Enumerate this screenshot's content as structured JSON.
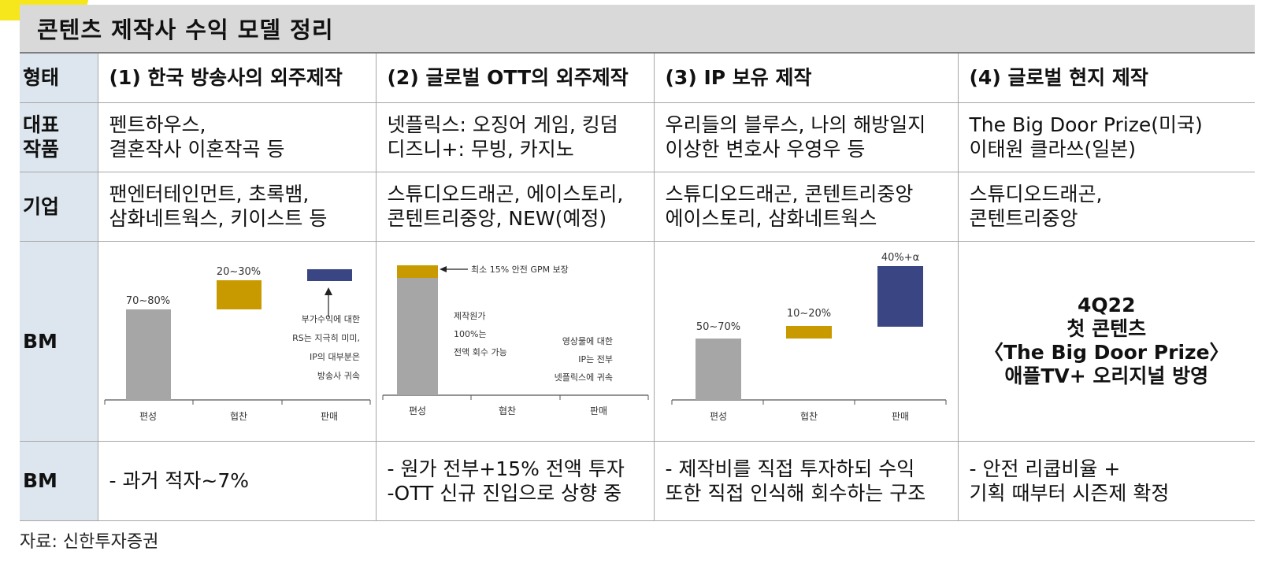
{
  "title": "콘텐츠 제작사 수익 모델 정리",
  "header": {
    "label": "형태",
    "cols": [
      "(1) 한국 방송사의 외주제작",
      "(2) 글로벌 OTT의 외주제작",
      "(3) IP 보유 제작",
      "(4) 글로벌 현지 제작"
    ]
  },
  "works": {
    "label": "대표\n작품",
    "cells": [
      "펜트하우스,\n결혼작사 이혼작곡 등",
      "넷플릭스: 오징어 게임, 킹덤\n디즈니+: 무빙, 카지노",
      "우리들의 블루스, 나의 해방일지\n이상한 변호사 우영우 등",
      "The Big Door Prize(미국)\n이태원 클라쓰(일본)"
    ]
  },
  "corp": {
    "label": "기업",
    "cells": [
      "팬엔터테인먼트, 초록뱀,\n삼화네트웍스, 키이스트 등",
      "스튜디오드래곤, 에이스토리,\n콘텐트리중앙, NEW(예정)",
      "스튜디오드래곤, 콘텐트리중앙\n에이스토리, 삼화네트웍스",
      "스튜디오드래곤,\n콘텐트리중앙"
    ]
  },
  "bm": {
    "label": "BM",
    "c4_lines": [
      "4Q22",
      "첫 콘텐츠",
      "〈The Big Door Prize〉",
      "애플TV+ 오리지널 방영"
    ],
    "charts": [
      {
        "labels": [
          "70~80%",
          "20~30%"
        ],
        "note": [
          "부가수익에 대한",
          "RS는 지극히 미미,",
          "IP의 대부분은",
          "방송사 귀속"
        ]
      },
      {
        "labels": [
          "최소 15% 안전 GPM 보장"
        ],
        "note1": [
          "제작원가",
          "100%는",
          "전액 회수 가능"
        ],
        "note2": [
          "영상물에 대한",
          "IP는 전부",
          "넷플릭스에 귀속"
        ]
      },
      {
        "labels": [
          "50~70%",
          "10~20%",
          "40%+α"
        ]
      }
    ]
  },
  "bm2": {
    "label": "BM",
    "cells": [
      "- 과거 적자~7%",
      "- 원가 전부+15% 전액 투자\n-OTT 신규 진입으로 상향 중",
      "- 제작비를 직접 투자하되 수익\n또한 직접 인식해 회수하는 구조",
      " - 안전 리쿱비율 +\n기획 때부터 시즌제 확정"
    ]
  },
  "chart_data": [
    {
      "type": "bar",
      "categories": [
        "편성",
        "협찬",
        "판매"
      ],
      "series": [
        {
          "values": [
            75,
            25,
            5
          ]
        }
      ],
      "value_labels": [
        "70~80%",
        "20~30%",
        ""
      ]
    },
    {
      "type": "bar",
      "categories": [
        "편성",
        "협찬",
        "판매"
      ],
      "series": [
        {
          "values": [
            100,
            0,
            0
          ]
        },
        {
          "values": [
            15,
            0,
            0
          ]
        }
      ],
      "value_labels": [
        "최소 15% 안전 GPM 보장"
      ]
    },
    {
      "type": "bar",
      "categories": [
        "편성",
        "협찬",
        "판매"
      ],
      "series": [
        {
          "values": [
            60,
            15,
            40
          ]
        }
      ],
      "value_labels": [
        "50~70%",
        "10~20%",
        "40%+α"
      ]
    }
  ],
  "source": "자료: 신한투자증권",
  "colors": {
    "gray": "#a6a6a6",
    "gold": "#c89a00",
    "navy": "#3a4584",
    "label_bg": "#dde6ee",
    "title_bg": "#d9d9d9"
  }
}
